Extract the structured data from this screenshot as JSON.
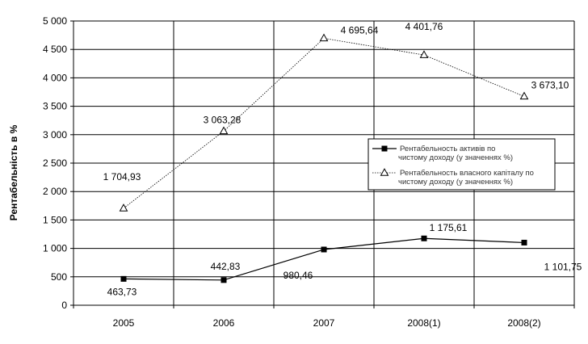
{
  "chart_data": {
    "type": "line",
    "title": "",
    "xlabel": "",
    "ylabel": "Рентабельність в %",
    "ylim": [
      0,
      5000
    ],
    "yticks": [
      0,
      500,
      1000,
      1500,
      2000,
      2500,
      3000,
      3500,
      4000,
      4500,
      5000
    ],
    "ytick_labels": [
      "0",
      "500",
      "1 000",
      "1 500",
      "2 000",
      "2 500",
      "3 000",
      "3 500",
      "4 000",
      "4 500",
      "5 000"
    ],
    "grid": true,
    "legend_position": "right",
    "categories": [
      "2005",
      "2006",
      "2007",
      "2008(1)",
      "2008(2)"
    ],
    "series": [
      {
        "name": "Рентабельность активів по чистому доходу (у значеннях %)",
        "marker": "square",
        "values": [
          463.73,
          442.83,
          980.46,
          1175.61,
          1101.75
        ],
        "labels": [
          "463,73",
          "442,83",
          "980,46",
          "1 175,61",
          "1 101,75"
        ]
      },
      {
        "name": "Рентабельность власного капіталу по чистому доходу (у значеннях %)",
        "marker": "triangle",
        "values": [
          1704.93,
          3063.28,
          4695.64,
          4401.76,
          3673.1
        ],
        "labels": [
          "1 704,93",
          "3 063,28",
          "4 695,64",
          "4 401,76",
          "3 673,10"
        ]
      }
    ]
  }
}
